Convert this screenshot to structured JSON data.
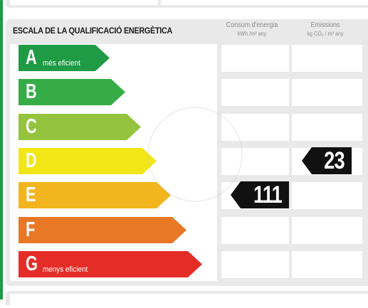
{
  "label": {
    "title": "ESCALA DE LA QUALIFICACIÓ ENERGÈTICA",
    "columns": {
      "consumption": {
        "label": "Consum d'energia",
        "unit": "kWh /m² any"
      },
      "emissions": {
        "label": "Emissions",
        "unit": "kg CO₂ / m² any"
      }
    },
    "bands": [
      {
        "letter": "A",
        "sub": "més eficient",
        "color": "#1f9a45"
      },
      {
        "letter": "B",
        "sub": "",
        "color": "#35ac46"
      },
      {
        "letter": "C",
        "sub": "",
        "color": "#94c43d"
      },
      {
        "letter": "D",
        "sub": "",
        "color": "#f2e616"
      },
      {
        "letter": "E",
        "sub": "",
        "color": "#f2b51d"
      },
      {
        "letter": "F",
        "sub": "",
        "color": "#e87726"
      },
      {
        "letter": "G",
        "sub": "menys eficient",
        "color": "#e52d28"
      }
    ],
    "consumption_rating": {
      "band": "E",
      "value": "111"
    },
    "emissions_rating": {
      "band": "D",
      "value": "23"
    }
  }
}
